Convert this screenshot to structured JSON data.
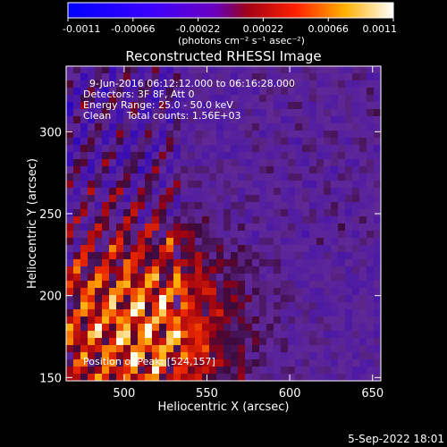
{
  "colorbar": {
    "tick_labels": [
      "-0.0011",
      "-0.00066",
      "-0.00022",
      "0.00022",
      "0.00066",
      "0.0011"
    ],
    "range": [
      -0.0011,
      0.0011
    ],
    "unit_label": "(photons cm⁻² s⁻¹ asec⁻²)",
    "colormap": "blue-purple-red-yellow-white"
  },
  "chart_data": {
    "type": "heatmap",
    "title": "Reconstructed RHESSI Image",
    "xlabel": "Heliocentric X (arcsec)",
    "ylabel": "Heliocentric Y (arcsec)",
    "xlim": [
      465,
      655
    ],
    "ylim": [
      148,
      340
    ],
    "x_ticks": [
      500,
      550,
      600,
      650
    ],
    "y_ticks": [
      150,
      200,
      250,
      300
    ],
    "annotations": [
      "9-Jun-2016 06:12:12.000 to 06:16:28.000",
      "Detectors: 3F 8F, Att 0",
      "Energy Range: 25.0 - 50.0 keV",
      "Clean     Total counts: 1.56E+03"
    ],
    "peak_label": "Position of Peak: [524,157]",
    "peak_position": [
      524,
      157
    ]
  },
  "footer": {
    "date": "5-Sep-2022 18:01"
  }
}
